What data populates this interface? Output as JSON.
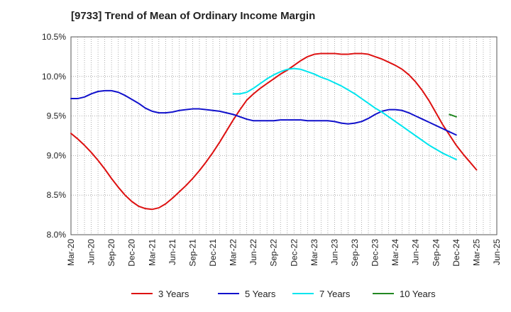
{
  "chart_data": {
    "type": "line",
    "title": "[9733]  Trend of Mean of Ordinary Income Margin",
    "xlabel": "",
    "ylabel": "",
    "ylim": [
      8.0,
      10.5
    ],
    "yticks": [
      8.0,
      8.5,
      9.0,
      9.5,
      10.0,
      10.5
    ],
    "ytick_labels": [
      "8.0%",
      "8.5%",
      "9.0%",
      "9.5%",
      "10.0%",
      "10.5%"
    ],
    "x_tick_labels": [
      "Mar-20",
      "Jun-20",
      "Sep-20",
      "Dec-20",
      "Mar-21",
      "Jun-21",
      "Sep-21",
      "Dec-21",
      "Mar-22",
      "Jun-22",
      "Sep-22",
      "Dec-22",
      "Mar-23",
      "Jun-23",
      "Sep-23",
      "Dec-23",
      "Mar-24",
      "Jun-24",
      "Sep-24",
      "Dec-24",
      "Mar-25",
      "Jun-25"
    ],
    "grid": true,
    "legend_position": "bottom",
    "series": [
      {
        "name": "3 Years",
        "color": "#dd1111",
        "start_index": 0,
        "values": [
          9.28,
          9.21,
          9.13,
          9.04,
          8.94,
          8.83,
          8.71,
          8.6,
          8.5,
          8.42,
          8.36,
          8.33,
          8.32,
          8.34,
          8.39,
          8.46,
          8.54,
          8.62,
          8.71,
          8.81,
          8.92,
          9.04,
          9.17,
          9.31,
          9.45,
          9.58,
          9.7,
          9.78,
          9.85,
          9.91,
          9.97,
          10.03,
          10.08,
          10.14,
          10.2,
          10.25,
          10.28,
          10.29,
          10.29,
          10.29,
          10.28,
          10.28,
          10.29,
          10.29,
          10.28,
          10.25,
          10.22,
          10.18,
          10.14,
          10.09,
          10.02,
          9.93,
          9.82,
          9.69,
          9.54,
          9.39,
          9.26,
          9.13,
          9.02,
          8.92,
          8.82
        ]
      },
      {
        "name": "5 Years",
        "color": "#1111cc",
        "start_index": 0,
        "values": [
          9.72,
          9.72,
          9.74,
          9.78,
          9.81,
          9.82,
          9.82,
          9.8,
          9.76,
          9.71,
          9.66,
          9.6,
          9.56,
          9.54,
          9.54,
          9.55,
          9.57,
          9.58,
          9.59,
          9.59,
          9.58,
          9.57,
          9.56,
          9.54,
          9.52,
          9.49,
          9.46,
          9.44,
          9.44,
          9.44,
          9.44,
          9.45,
          9.45,
          9.45,
          9.45,
          9.44,
          9.44,
          9.44,
          9.44,
          9.43,
          9.41,
          9.4,
          9.41,
          9.43,
          9.47,
          9.52,
          9.56,
          9.58,
          9.58,
          9.57,
          9.54,
          9.5,
          9.46,
          9.42,
          9.38,
          9.34,
          9.3,
          9.26
        ]
      },
      {
        "name": "7 Years",
        "color": "#00e5ee",
        "start_index": 24,
        "values": [
          9.78,
          9.78,
          9.8,
          9.85,
          9.91,
          9.97,
          10.02,
          10.06,
          10.09,
          10.1,
          10.09,
          10.06,
          10.03,
          9.99,
          9.96,
          9.92,
          9.88,
          9.83,
          9.78,
          9.72,
          9.66,
          9.6,
          9.55,
          9.49,
          9.43,
          9.37,
          9.31,
          9.25,
          9.19,
          9.13,
          9.08,
          9.03,
          8.99,
          8.95
        ]
      },
      {
        "name": "10 Years",
        "color": "#228822",
        "start_index": 56,
        "values": [
          9.52,
          9.49
        ]
      }
    ]
  }
}
